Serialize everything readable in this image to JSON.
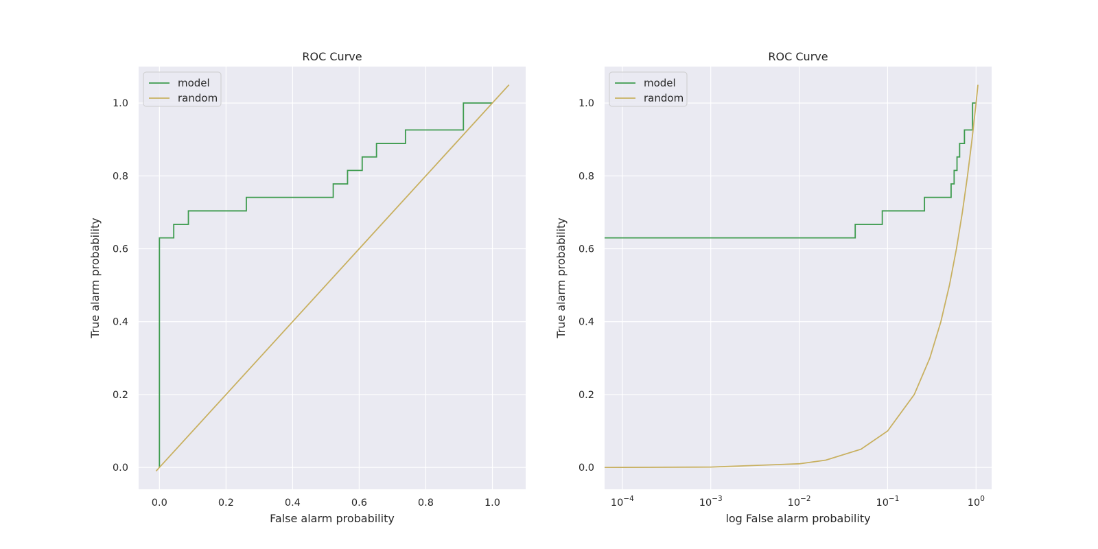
{
  "colors": {
    "model": "#3d9b4e",
    "random": "#c8b060",
    "axes_bg": "#eaeaf2",
    "grid": "#ffffff"
  },
  "chart_data": [
    {
      "type": "line",
      "title": "ROC Curve",
      "xlabel": "False alarm probability",
      "ylabel": "True alarm probability",
      "xscale": "linear",
      "xlim": [
        -0.0625,
        1.1
      ],
      "ylim": [
        -0.06,
        1.1
      ],
      "xticks": [
        0.0,
        0.2,
        0.4,
        0.6,
        0.8,
        1.0
      ],
      "xtick_labels": [
        "0.0",
        "0.2",
        "0.4",
        "0.6",
        "0.8",
        "1.0"
      ],
      "yticks": [
        0.0,
        0.2,
        0.4,
        0.6,
        0.8,
        1.0
      ],
      "ytick_labels": [
        "0.0",
        "0.2",
        "0.4",
        "0.6",
        "0.8",
        "1.0"
      ],
      "grid": true,
      "legend": "upper left",
      "series": [
        {
          "name": "model",
          "color_key": "model",
          "x": [
            0.0,
            0.0,
            0.0,
            0.043,
            0.043,
            0.087,
            0.087,
            0.261,
            0.261,
            0.522,
            0.522,
            0.565,
            0.565,
            0.609,
            0.609,
            0.652,
            0.652,
            0.739,
            0.739,
            0.913,
            0.913,
            1.0
          ],
          "y": [
            0.0,
            0.63,
            0.63,
            0.63,
            0.667,
            0.667,
            0.704,
            0.704,
            0.741,
            0.741,
            0.778,
            0.778,
            0.815,
            0.815,
            0.852,
            0.852,
            0.889,
            0.889,
            0.926,
            0.926,
            1.0,
            1.0
          ]
        },
        {
          "name": "random",
          "color_key": "random",
          "x": [
            -0.01,
            1.05
          ],
          "y": [
            -0.01,
            1.05
          ]
        }
      ]
    },
    {
      "type": "line",
      "title": "ROC Curve",
      "xlabel": "log False alarm probability",
      "ylabel": "True alarm probability",
      "xscale": "log",
      "xlim": [
        6.3e-05,
        1.5
      ],
      "ylim": [
        -0.06,
        1.1
      ],
      "xticks": [
        0.0001,
        0.001,
        0.01,
        0.1,
        1
      ],
      "xtick_labels": [
        {
          "base": "10",
          "exp": "−4"
        },
        {
          "base": "10",
          "exp": "−3"
        },
        {
          "base": "10",
          "exp": "−2"
        },
        {
          "base": "10",
          "exp": "−1"
        },
        {
          "base": "10",
          "exp": "0"
        }
      ],
      "yticks": [
        0.0,
        0.2,
        0.4,
        0.6,
        0.8,
        1.0
      ],
      "ytick_labels": [
        "0.0",
        "0.2",
        "0.4",
        "0.6",
        "0.8",
        "1.0"
      ],
      "grid": true,
      "legend": "upper left",
      "series": [
        {
          "name": "model",
          "color_key": "model",
          "x": [
            6.3e-05,
            0.043,
            0.043,
            0.087,
            0.087,
            0.261,
            0.261,
            0.522,
            0.522,
            0.565,
            0.565,
            0.609,
            0.609,
            0.652,
            0.652,
            0.739,
            0.739,
            0.913,
            0.913,
            1.0
          ],
          "y": [
            0.63,
            0.63,
            0.667,
            0.667,
            0.704,
            0.704,
            0.741,
            0.741,
            0.778,
            0.778,
            0.815,
            0.815,
            0.852,
            0.852,
            0.889,
            0.889,
            0.926,
            0.926,
            1.0,
            1.0
          ]
        },
        {
          "name": "random",
          "color_key": "random",
          "x": [
            6.3e-05,
            0.0001,
            0.001,
            0.01,
            0.02,
            0.05,
            0.1,
            0.2,
            0.3,
            0.4,
            0.5,
            0.6,
            0.7,
            0.8,
            0.9,
            1.0,
            1.05
          ],
          "y": [
            6.3e-05,
            0.0001,
            0.001,
            0.01,
            0.02,
            0.05,
            0.1,
            0.2,
            0.3,
            0.4,
            0.5,
            0.6,
            0.7,
            0.8,
            0.9,
            1.0,
            1.05
          ]
        }
      ]
    }
  ]
}
